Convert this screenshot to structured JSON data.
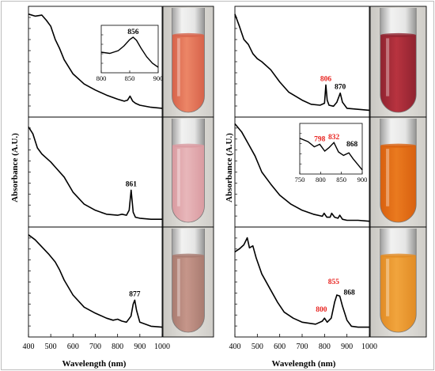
{
  "figure": {
    "ylabel": "Absorbance (A.U.)",
    "xlabel": "Wavelength (nm)",
    "x_ticks": [
      "400",
      "500",
      "600",
      "700",
      "800",
      "900",
      "1000"
    ],
    "inset_ticks_left": [
      "800",
      "850",
      "900"
    ],
    "inset_ticks_right": [
      "750",
      "800",
      "850",
      "900"
    ]
  },
  "colors": {
    "line": "#000000",
    "peak_black": "#000000",
    "peak_red": "#e8231f",
    "frame": "#000000"
  },
  "chart_data": [
    {
      "type": "line",
      "column": "left",
      "row": 1,
      "xlim": [
        400,
        1000
      ],
      "ylim": [
        0,
        1
      ],
      "x": [
        400,
        430,
        460,
        480,
        500,
        520,
        540,
        560,
        600,
        650,
        700,
        750,
        800,
        830,
        845,
        856,
        868,
        880,
        900,
        950,
        1000
      ],
      "y": [
        0.97,
        0.95,
        0.96,
        0.91,
        0.85,
        0.72,
        0.63,
        0.52,
        0.38,
        0.28,
        0.22,
        0.17,
        0.13,
        0.11,
        0.12,
        0.16,
        0.11,
        0.09,
        0.07,
        0.05,
        0.04
      ],
      "peaks": [],
      "inset": {
        "xlim": [
          800,
          900
        ],
        "x_ticks": [
          "800",
          "850",
          "900"
        ],
        "x": [
          800,
          815,
          830,
          840,
          850,
          856,
          862,
          870,
          880,
          890,
          900
        ],
        "y": [
          0.48,
          0.45,
          0.52,
          0.64,
          0.8,
          0.86,
          0.78,
          0.58,
          0.36,
          0.2,
          0.1
        ],
        "peaks": [
          {
            "x": 856,
            "label": "856",
            "color": "black"
          }
        ]
      },
      "vial": {
        "liquid": "#ec8667",
        "liquid_dark": "#d6624a"
      }
    },
    {
      "type": "line",
      "column": "left",
      "row": 2,
      "xlim": [
        400,
        1000
      ],
      "ylim": [
        0,
        1
      ],
      "x": [
        400,
        420,
        440,
        460,
        480,
        500,
        520,
        560,
        600,
        650,
        700,
        750,
        800,
        820,
        840,
        852,
        861,
        870,
        880,
        900,
        950,
        1000
      ],
      "y": [
        0.95,
        0.88,
        0.74,
        0.68,
        0.64,
        0.6,
        0.55,
        0.45,
        0.3,
        0.18,
        0.12,
        0.08,
        0.07,
        0.08,
        0.07,
        0.12,
        0.32,
        0.1,
        0.05,
        0.04,
        0.03,
        0.03
      ],
      "peaks": [
        {
          "x": 861,
          "label": "861",
          "color": "black"
        }
      ],
      "vial": {
        "liquid": "#e8b7ba",
        "liquid_dark": "#d99aa0"
      }
    },
    {
      "type": "line",
      "column": "left",
      "row": 3,
      "xlim": [
        400,
        1000
      ],
      "ylim": [
        0,
        1
      ],
      "x": [
        400,
        430,
        460,
        490,
        520,
        540,
        560,
        600,
        650,
        700,
        750,
        780,
        800,
        820,
        840,
        860,
        870,
        877,
        885,
        900,
        950,
        1000
      ],
      "y": [
        0.97,
        0.92,
        0.85,
        0.78,
        0.7,
        0.62,
        0.52,
        0.37,
        0.25,
        0.19,
        0.14,
        0.12,
        0.13,
        0.11,
        0.1,
        0.16,
        0.28,
        0.32,
        0.22,
        0.1,
        0.06,
        0.05
      ],
      "peaks": [
        {
          "x": 877,
          "label": "877",
          "color": "black"
        }
      ],
      "vial": {
        "liquid": "#c6968a",
        "liquid_dark": "#a87b70"
      }
    },
    {
      "type": "line",
      "column": "right",
      "row": 1,
      "xlim": [
        400,
        1000
      ],
      "ylim": [
        0,
        1
      ],
      "x": [
        400,
        420,
        440,
        460,
        480,
        500,
        520,
        560,
        600,
        640,
        700,
        740,
        780,
        800,
        806,
        812,
        820,
        840,
        855,
        870,
        880,
        900,
        950,
        1000
      ],
      "y": [
        0.97,
        0.85,
        0.72,
        0.67,
        0.58,
        0.53,
        0.5,
        0.42,
        0.3,
        0.2,
        0.12,
        0.08,
        0.07,
        0.09,
        0.27,
        0.12,
        0.07,
        0.06,
        0.1,
        0.19,
        0.1,
        0.04,
        0.03,
        0.02
      ],
      "peaks": [
        {
          "x": 806,
          "label": "806",
          "color": "red"
        },
        {
          "x": 870,
          "label": "870",
          "color": "black"
        }
      ],
      "vial": {
        "liquid": "#b8333f",
        "liquid_dark": "#8f2330"
      }
    },
    {
      "type": "line",
      "column": "right",
      "row": 2,
      "xlim": [
        400,
        1000
      ],
      "ylim": [
        0,
        1
      ],
      "x": [
        400,
        430,
        460,
        490,
        520,
        560,
        600,
        650,
        700,
        750,
        790,
        798,
        810,
        825,
        832,
        845,
        860,
        868,
        880,
        900,
        950,
        1000
      ],
      "y": [
        0.98,
        0.9,
        0.78,
        0.66,
        0.5,
        0.38,
        0.27,
        0.18,
        0.12,
        0.08,
        0.06,
        0.09,
        0.05,
        0.05,
        0.09,
        0.05,
        0.04,
        0.07,
        0.03,
        0.02,
        0.02,
        0.01
      ],
      "peaks": [],
      "inset": {
        "xlim": [
          750,
          900
        ],
        "x_ticks": [
          "750",
          "800",
          "850",
          "900"
        ],
        "x": [
          750,
          770,
          785,
          798,
          810,
          820,
          832,
          843,
          855,
          868,
          878,
          890,
          900
        ],
        "y": [
          0.8,
          0.72,
          0.6,
          0.66,
          0.5,
          0.58,
          0.7,
          0.48,
          0.4,
          0.46,
          0.32,
          0.18,
          0.06
        ],
        "peaks": [
          {
            "x": 798,
            "label": "798",
            "color": "red"
          },
          {
            "x": 832,
            "label": "832",
            "color": "red"
          },
          {
            "x": 868,
            "label": "868",
            "color": "black"
          }
        ]
      },
      "vial": {
        "liquid": "#ea7a1f",
        "liquid_dark": "#d8600f"
      }
    },
    {
      "type": "line",
      "column": "right",
      "row": 3,
      "xlim": [
        400,
        1000
      ],
      "ylim": [
        0,
        1
      ],
      "x": [
        400,
        420,
        440,
        455,
        465,
        480,
        495,
        520,
        560,
        590,
        620,
        660,
        700,
        760,
        790,
        800,
        812,
        830,
        845,
        855,
        868,
        880,
        900,
        920,
        950,
        1000
      ],
      "y": [
        0.8,
        0.83,
        0.87,
        0.94,
        0.84,
        0.86,
        0.74,
        0.58,
        0.42,
        0.3,
        0.2,
        0.14,
        0.1,
        0.08,
        0.11,
        0.14,
        0.1,
        0.14,
        0.3,
        0.37,
        0.36,
        0.26,
        0.12,
        0.06,
        0.05,
        0.05
      ],
      "peaks": [
        {
          "x": 800,
          "label": "800",
          "color": "red"
        },
        {
          "x": 855,
          "label": "855",
          "color": "red"
        },
        {
          "x": 868,
          "label": "868",
          "color": "black"
        }
      ],
      "vial": {
        "liquid": "#f1a43d",
        "liquid_dark": "#e18b24"
      }
    }
  ]
}
